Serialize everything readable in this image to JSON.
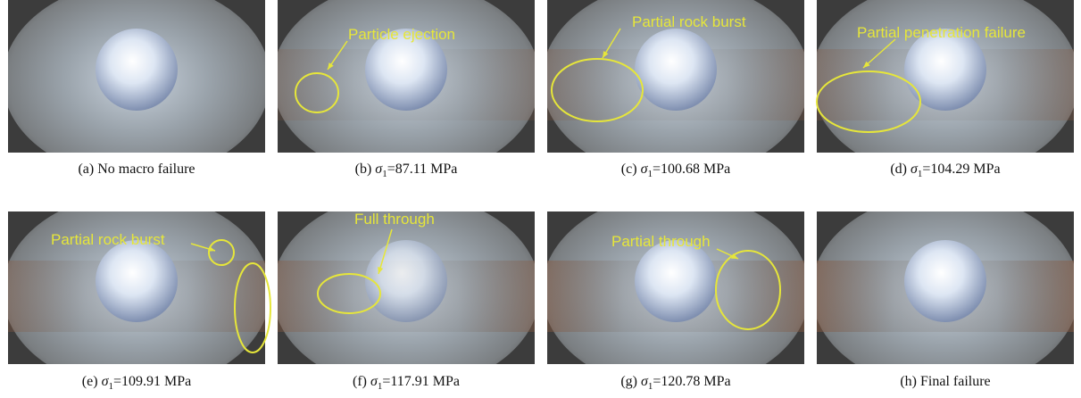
{
  "panels": [
    {
      "label": "(a)",
      "text": "No macro failure"
    },
    {
      "label": "(b)",
      "sigma": "σ",
      "sub": "1",
      "text": "=87.11 MPa",
      "annotation": "Particle ejection"
    },
    {
      "label": "(c)",
      "sigma": "σ",
      "sub": "1",
      "text": "=100.68 MPa",
      "annotation": "Partial rock burst"
    },
    {
      "label": "(d)",
      "sigma": "σ",
      "sub": "1",
      "text": "=104.29 MPa",
      "annotation": "Partial penetration failure"
    },
    {
      "label": "(e)",
      "sigma": "σ",
      "sub": "1",
      "text": "=109.91 MPa",
      "annotation": "Partial rock burst"
    },
    {
      "label": "(f)",
      "sigma": "σ",
      "sub": "1",
      "text": "=117.91 MPa",
      "annotation": "Full through"
    },
    {
      "label": "(g)",
      "sigma": "σ",
      "sub": "1",
      "text": "=120.78 MPa",
      "annotation": "Partial through"
    },
    {
      "label": "(h)",
      "text": "Final failure"
    }
  ]
}
